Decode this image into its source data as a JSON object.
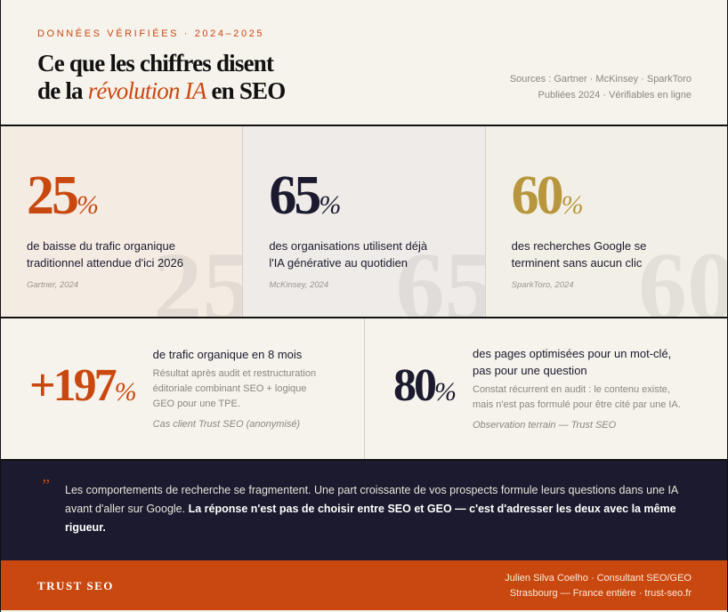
{
  "header": {
    "eyebrow": "DONNÉES VÉRIFIÉES · 2024–2025",
    "title_line1": "Ce que les chiffres disent",
    "title_pre": "de la ",
    "title_em": "révolution IA",
    "title_post": " en SEO",
    "sources_line1": "Sources : Gartner · McKinsey · SparkToro",
    "sources_line2": "Publiées 2024 · Vérifiables en ligne"
  },
  "colors": {
    "accent": "#c9480f",
    "navy": "#1b1a2e",
    "gold": "#b8963e"
  },
  "stats": [
    {
      "value": "25",
      "unit": "%",
      "desc": "de baisse du trafic organique traditionnel attendue d'ici 2026",
      "source": "Gartner, 2024",
      "color": "#c9480f"
    },
    {
      "value": "65",
      "unit": "%",
      "desc": "des organisations utilisent déjà l'IA générative au quotidien",
      "source": "McKinsey, 2024",
      "color": "#1b1a2e"
    },
    {
      "value": "60",
      "unit": "%",
      "desc": "des recherches Google se terminent sans aucun clic",
      "source": "SparkToro, 2024",
      "color": "#b8963e"
    }
  ],
  "cases": [
    {
      "value": "+197",
      "unit": "%",
      "title": "de trafic organique en 8 mois",
      "text": "Résultat après audit et restructuration éditoriale combinant SEO + logique GEO pour une TPE.",
      "source": "Cas client Trust SEO (anonymisé)"
    },
    {
      "value": "80",
      "unit": "%",
      "title": "des pages optimisées pour un mot-clé, pas pour une question",
      "text": "Constat récurrent en audit : le contenu existe, mais n'est pas formulé pour être cité par une IA.",
      "source": "Observation terrain — Trust SEO"
    }
  ],
  "quote": {
    "mark": "”",
    "text": "Les comportements de recherche se fragmentent. Une part croissante de vos prospects formule leurs questions dans une IA avant d'aller sur Google. ",
    "bold": "La réponse n'est pas de choisir entre SEO et GEO — c'est d'adresser les deux avec la même rigueur."
  },
  "footer": {
    "brand": "TRUST SEO",
    "line1": "Julien Silva Coelho · Consultant SEO/GEO",
    "line2": "Strasbourg — France entière · trust-seo.fr"
  }
}
